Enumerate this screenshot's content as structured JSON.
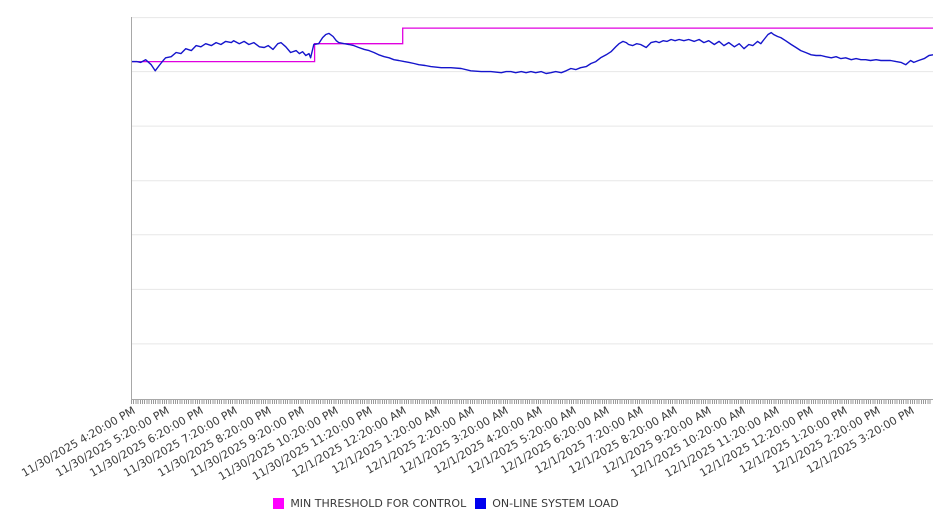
{
  "page": {
    "background": "#ffffff"
  },
  "legend": {
    "position": "bottom-center",
    "items": [
      {
        "label": "MIN THRESHOLD FOR CONTROL",
        "color": "#ff00ff"
      },
      {
        "label": "ON-LINE SYSTEM LOAD",
        "color": "#0000ee"
      }
    ]
  },
  "chart_data": {
    "type": "line",
    "title": "",
    "xlabel": "",
    "ylabel": "",
    "grid": true,
    "note": "No y-axis tick labels are visible in the chart; series values are normalized to plot height (0 = bottom axis, 1 = top gridline). x values are fraction of the plotted time window (0 = 11/30/2025 4:20 PM at the left axis, 1 = right edge, about 23.6 hours).",
    "x_axis": {
      "tick_labels": [
        "11/30/2025 4:20:00 PM",
        "11/30/2025 5:20:00 PM",
        "11/30/2025 6:20:00 PM",
        "11/30/2025 7:20:00 PM",
        "11/30/2025 8:20:00 PM",
        "11/30/2025 9:20:00 PM",
        "11/30/2025 10:20:00 PM",
        "11/30/2025 11:20:00 PM",
        "12/1/2025 12:20:00 AM",
        "12/1/2025 1:20:00 AM",
        "12/1/2025 2:20:00 AM",
        "12/1/2025 3:20:00 AM",
        "12/1/2025 4:20:00 AM",
        "12/1/2025 5:20:00 AM",
        "12/1/2025 6:20:00 AM",
        "12/1/2025 7:20:00 AM",
        "12/1/2025 8:20:00 AM",
        "12/1/2025 9:20:00 AM",
        "12/1/2025 10:20:00 AM",
        "12/1/2025 11:20:00 AM",
        "12/1/2025 12:20:00 PM",
        "12/1/2025 1:20:00 PM",
        "12/1/2025 2:20:00 PM",
        "12/1/2025 3:20:00 PM"
      ],
      "tick_interval": "1 hour",
      "hours_span": 23.64,
      "label_rotation_deg": -30,
      "minor_ticks": "dense per-sample tick comb along baseline"
    },
    "y_axis": {
      "tick_labels_visible": false,
      "range_normalized": [
        0,
        1
      ],
      "gridline_values": [
        1.0,
        0.857,
        0.714,
        0.571,
        0.429,
        0.286,
        0.143
      ]
    },
    "colors": {
      "threshold_line": "#e000e0",
      "load_line": "#1515cc",
      "grid": "#e7e7e7",
      "axis": "#a8a8a8",
      "tick_label": "#3c3c3c"
    },
    "series": [
      {
        "name": "MIN THRESHOLD FOR CONTROL",
        "style": "step",
        "segments": [
          {
            "x_from": 0.0,
            "x_to": 0.228,
            "value": 0.883
          },
          {
            "x_from": 0.228,
            "x_to": 0.338,
            "value": 0.93
          },
          {
            "x_from": 0.338,
            "x_to": 1.0,
            "value": 0.971
          }
        ]
      },
      {
        "name": "ON-LINE SYSTEM LOAD",
        "style": "line",
        "points": [
          [
            0.0,
            0.883
          ],
          [
            0.006,
            0.883
          ],
          [
            0.011,
            0.881
          ],
          [
            0.017,
            0.888
          ],
          [
            0.024,
            0.875
          ],
          [
            0.029,
            0.859
          ],
          [
            0.034,
            0.873
          ],
          [
            0.039,
            0.886
          ],
          [
            0.042,
            0.893
          ],
          [
            0.049,
            0.896
          ],
          [
            0.055,
            0.907
          ],
          [
            0.061,
            0.904
          ],
          [
            0.067,
            0.917
          ],
          [
            0.074,
            0.912
          ],
          [
            0.08,
            0.925
          ],
          [
            0.086,
            0.922
          ],
          [
            0.092,
            0.93
          ],
          [
            0.099,
            0.925
          ],
          [
            0.105,
            0.933
          ],
          [
            0.111,
            0.928
          ],
          [
            0.117,
            0.936
          ],
          [
            0.124,
            0.933
          ],
          [
            0.127,
            0.938
          ],
          [
            0.134,
            0.93
          ],
          [
            0.14,
            0.936
          ],
          [
            0.146,
            0.928
          ],
          [
            0.152,
            0.933
          ],
          [
            0.159,
            0.922
          ],
          [
            0.165,
            0.92
          ],
          [
            0.17,
            0.925
          ],
          [
            0.176,
            0.915
          ],
          [
            0.182,
            0.93
          ],
          [
            0.186,
            0.933
          ],
          [
            0.192,
            0.922
          ],
          [
            0.198,
            0.907
          ],
          [
            0.205,
            0.912
          ],
          [
            0.209,
            0.904
          ],
          [
            0.213,
            0.909
          ],
          [
            0.217,
            0.899
          ],
          [
            0.221,
            0.904
          ],
          [
            0.223,
            0.893
          ],
          [
            0.227,
            0.928
          ],
          [
            0.233,
            0.93
          ],
          [
            0.238,
            0.946
          ],
          [
            0.242,
            0.954
          ],
          [
            0.246,
            0.957
          ],
          [
            0.251,
            0.949
          ],
          [
            0.255,
            0.938
          ],
          [
            0.258,
            0.933
          ],
          [
            0.265,
            0.93
          ],
          [
            0.271,
            0.928
          ],
          [
            0.277,
            0.925
          ],
          [
            0.283,
            0.92
          ],
          [
            0.29,
            0.915
          ],
          [
            0.296,
            0.912
          ],
          [
            0.302,
            0.907
          ],
          [
            0.308,
            0.901
          ],
          [
            0.315,
            0.896
          ],
          [
            0.321,
            0.893
          ],
          [
            0.327,
            0.888
          ],
          [
            0.333,
            0.886
          ],
          [
            0.34,
            0.883
          ],
          [
            0.346,
            0.881
          ],
          [
            0.352,
            0.878
          ],
          [
            0.358,
            0.875
          ],
          [
            0.366,
            0.873
          ],
          [
            0.373,
            0.87
          ],
          [
            0.386,
            0.867
          ],
          [
            0.398,
            0.867
          ],
          [
            0.411,
            0.865
          ],
          [
            0.423,
            0.859
          ],
          [
            0.436,
            0.857
          ],
          [
            0.448,
            0.857
          ],
          [
            0.461,
            0.854
          ],
          [
            0.467,
            0.857
          ],
          [
            0.473,
            0.857
          ],
          [
            0.479,
            0.854
          ],
          [
            0.486,
            0.857
          ],
          [
            0.492,
            0.854
          ],
          [
            0.498,
            0.857
          ],
          [
            0.504,
            0.854
          ],
          [
            0.511,
            0.857
          ],
          [
            0.517,
            0.852
          ],
          [
            0.523,
            0.854
          ],
          [
            0.529,
            0.857
          ],
          [
            0.536,
            0.854
          ],
          [
            0.542,
            0.859
          ],
          [
            0.548,
            0.865
          ],
          [
            0.554,
            0.862
          ],
          [
            0.56,
            0.867
          ],
          [
            0.567,
            0.87
          ],
          [
            0.573,
            0.878
          ],
          [
            0.579,
            0.883
          ],
          [
            0.585,
            0.893
          ],
          [
            0.592,
            0.901
          ],
          [
            0.598,
            0.909
          ],
          [
            0.604,
            0.922
          ],
          [
            0.608,
            0.93
          ],
          [
            0.613,
            0.936
          ],
          [
            0.617,
            0.933
          ],
          [
            0.62,
            0.928
          ],
          [
            0.625,
            0.925
          ],
          [
            0.63,
            0.93
          ],
          [
            0.635,
            0.928
          ],
          [
            0.642,
            0.92
          ],
          [
            0.648,
            0.933
          ],
          [
            0.654,
            0.936
          ],
          [
            0.658,
            0.933
          ],
          [
            0.663,
            0.938
          ],
          [
            0.668,
            0.936
          ],
          [
            0.673,
            0.941
          ],
          [
            0.678,
            0.938
          ],
          [
            0.683,
            0.941
          ],
          [
            0.689,
            0.938
          ],
          [
            0.695,
            0.941
          ],
          [
            0.702,
            0.936
          ],
          [
            0.708,
            0.941
          ],
          [
            0.714,
            0.933
          ],
          [
            0.72,
            0.938
          ],
          [
            0.727,
            0.928
          ],
          [
            0.733,
            0.936
          ],
          [
            0.739,
            0.925
          ],
          [
            0.745,
            0.933
          ],
          [
            0.752,
            0.922
          ],
          [
            0.758,
            0.93
          ],
          [
            0.764,
            0.917
          ],
          [
            0.77,
            0.928
          ],
          [
            0.775,
            0.925
          ],
          [
            0.781,
            0.936
          ],
          [
            0.785,
            0.93
          ],
          [
            0.789,
            0.941
          ],
          [
            0.794,
            0.954
          ],
          [
            0.798,
            0.959
          ],
          [
            0.801,
            0.954
          ],
          [
            0.806,
            0.949
          ],
          [
            0.81,
            0.946
          ],
          [
            0.816,
            0.938
          ],
          [
            0.823,
            0.928
          ],
          [
            0.829,
            0.92
          ],
          [
            0.835,
            0.912
          ],
          [
            0.841,
            0.907
          ],
          [
            0.848,
            0.901
          ],
          [
            0.854,
            0.899
          ],
          [
            0.86,
            0.899
          ],
          [
            0.866,
            0.896
          ],
          [
            0.873,
            0.893
          ],
          [
            0.879,
            0.896
          ],
          [
            0.885,
            0.891
          ],
          [
            0.891,
            0.893
          ],
          [
            0.898,
            0.888
          ],
          [
            0.904,
            0.891
          ],
          [
            0.91,
            0.888
          ],
          [
            0.916,
            0.888
          ],
          [
            0.922,
            0.886
          ],
          [
            0.929,
            0.888
          ],
          [
            0.935,
            0.886
          ],
          [
            0.941,
            0.886
          ],
          [
            0.947,
            0.886
          ],
          [
            0.954,
            0.883
          ],
          [
            0.96,
            0.881
          ],
          [
            0.966,
            0.875
          ],
          [
            0.972,
            0.886
          ],
          [
            0.976,
            0.881
          ],
          [
            0.982,
            0.886
          ],
          [
            0.989,
            0.891
          ],
          [
            0.995,
            0.899
          ],
          [
            1.0,
            0.901
          ]
        ]
      }
    ],
    "legend_position": "bottom-center"
  }
}
